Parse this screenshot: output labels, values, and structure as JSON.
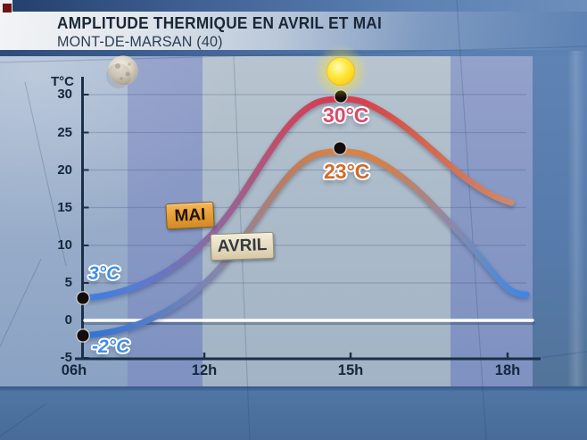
{
  "header": {
    "title": "AMPLITUDE THERMIQUE EN AVRIL ET MAI",
    "subtitle": "MONT-DE-MARSAN (40)"
  },
  "chart_data": {
    "type": "line",
    "title": "AMPLITUDE THERMIQUE EN AVRIL ET MAI",
    "location": "MONT-DE-MARSAN (40)",
    "ylabel": "T°C",
    "ylim": [
      -5,
      30
    ],
    "yticks": [
      "30",
      "25",
      "20",
      "15",
      "10",
      "5",
      "0",
      "-5"
    ],
    "xticks": [
      "06h",
      "12h",
      "15h",
      "18h"
    ],
    "grid": true,
    "zero_line": true,
    "series": [
      {
        "name": "MAI",
        "color": "#d63a50",
        "label_start": "3°C",
        "label_peak": "30°C",
        "points": [
          {
            "time": "06h",
            "temp_c": 3
          },
          {
            "time": "12h",
            "temp_c": 11
          },
          {
            "time": "~14h45",
            "temp_c": 30
          },
          {
            "time": "18h",
            "temp_c": 16
          }
        ]
      },
      {
        "name": "AVRIL",
        "color": "#e0813f",
        "label_start": "-2°C",
        "label_peak": "23°C",
        "points": [
          {
            "time": "06h",
            "temp_c": -2
          },
          {
            "time": "12h",
            "temp_c": 6
          },
          {
            "time": "~14h45",
            "temp_c": 23
          },
          {
            "time": "18h",
            "temp_c": 4
          }
        ]
      }
    ],
    "icons": [
      {
        "name": "moon-icon"
      },
      {
        "name": "sun-icon"
      }
    ]
  },
  "colors": {
    "axis": "#1b3048",
    "zero_line": "#ffffff",
    "cold_blue": "#3c86e8",
    "mai_peak": "#d63a50",
    "avril_peak": "#e0813f"
  }
}
